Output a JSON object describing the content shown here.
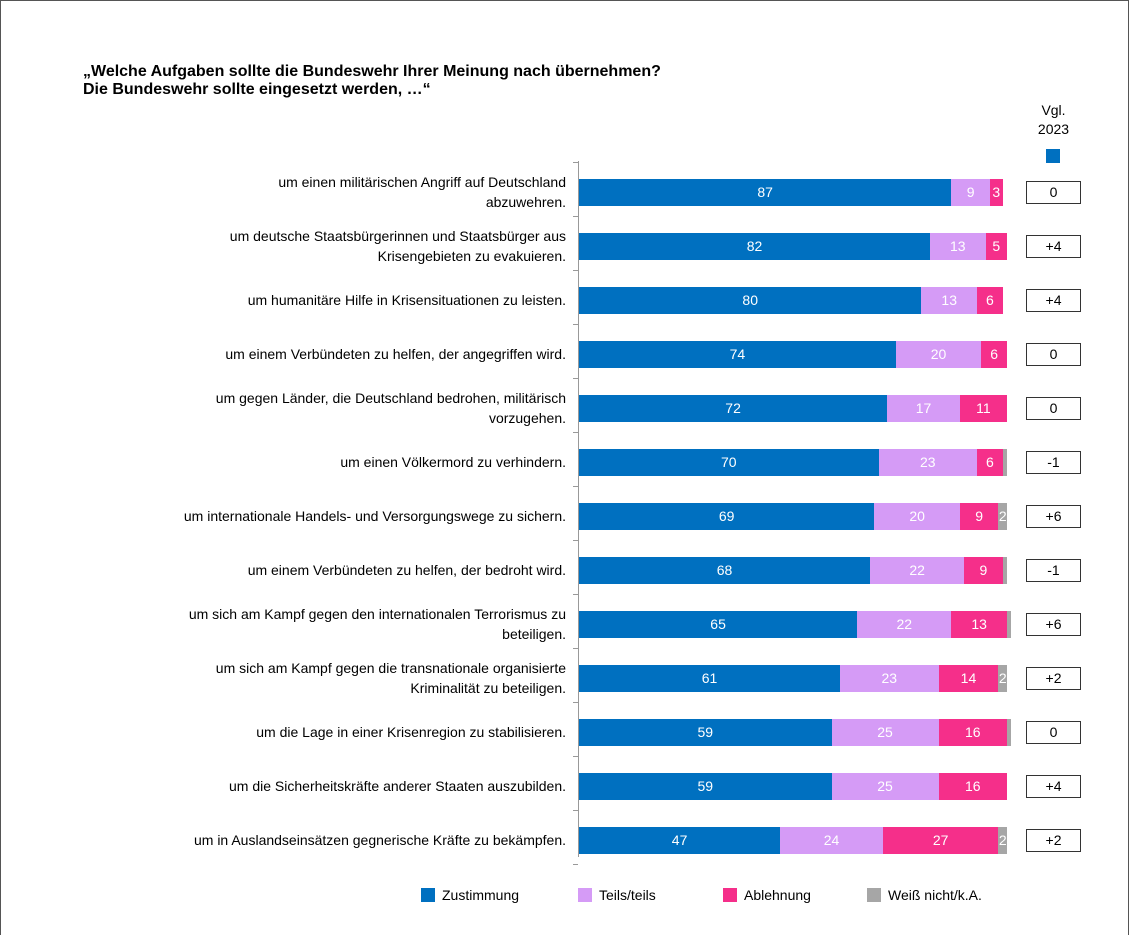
{
  "chart_data": {
    "type": "stacked-bar-horizontal",
    "title": "„Welche Aufgaben sollte die Bundeswehr Ihrer Meinung nach übernehmen?\nDie Bundeswehr sollte eingesetzt werden, …“",
    "categories": [
      "um einen militärischen Angriff auf Deutschland\nabzuwehren.",
      "um deutsche Staatsbürgerinnen und Staatsbürger aus\nKrisengebieten zu evakuieren.",
      "um humanitäre Hilfe in Krisensituationen zu leisten.",
      "um einem Verbündeten zu helfen, der angegriffen wird.",
      "um gegen Länder, die Deutschland bedrohen, militärisch\nvorzugehen.",
      "um einen Völkermord zu verhindern.",
      "um internationale Handels- und Versorgungswege zu sichern.",
      "um einem Verbündeten zu helfen, der bedroht wird.",
      "um sich am Kampf gegen den internationalen Terrorismus zu\nbeteiligen.",
      "um sich am Kampf gegen die transnationale organisierte\nKriminalität zu beteiligen.",
      "um die Lage in einer Krisenregion zu stabilisieren.",
      "um die Sicherheitskräfte anderer Staaten auszubilden.",
      "um in Auslandseinsätzen gegnerische Kräfte zu bekämpfen."
    ],
    "xlim": [
      0,
      100
    ],
    "series": [
      {
        "name": "Zustimmung",
        "color": "#0070c0",
        "label_color": "#ffffff",
        "values": [
          87,
          82,
          80,
          74,
          72,
          70,
          69,
          68,
          65,
          61,
          59,
          59,
          47
        ]
      },
      {
        "name": "Teils/teils",
        "color": "#d59bf6",
        "label_color": "#ffffff",
        "values": [
          9,
          13,
          13,
          20,
          17,
          23,
          20,
          22,
          22,
          23,
          25,
          25,
          24
        ]
      },
      {
        "name": "Ablehnung",
        "color": "#f52f8a",
        "label_color": "#ffffff",
        "values": [
          3,
          5,
          6,
          6,
          11,
          6,
          9,
          9,
          13,
          14,
          16,
          16,
          27
        ]
      },
      {
        "name": "Weiß nicht/k.A.",
        "color": "#a6a6a6",
        "label_color": "#ffffff",
        "values": [
          0,
          0,
          0,
          0,
          0,
          1,
          2,
          1,
          1,
          2,
          1,
          0,
          2
        ]
      }
    ],
    "comparison": {
      "label": "Vgl.\n2023",
      "color": "#0070c0",
      "values": [
        0,
        4,
        4,
        0,
        0,
        -1,
        6,
        -1,
        6,
        2,
        0,
        4,
        2
      ],
      "value_labels": [
        "0",
        "+4",
        "+4",
        "0",
        "0",
        "-1",
        "+6",
        "-1",
        "+6",
        "+2",
        "0",
        "+4",
        "+2"
      ]
    }
  }
}
